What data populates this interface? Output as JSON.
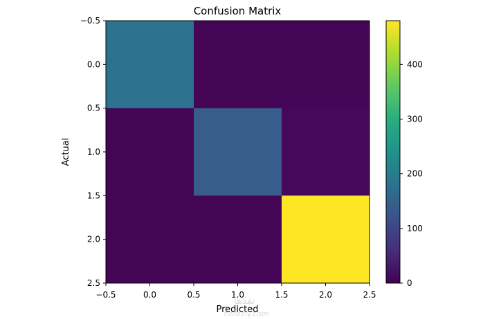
{
  "chart_data": {
    "type": "heatmap",
    "title": "Confusion Matrix",
    "xlabel": "Predicted",
    "ylabel": "Actual",
    "colormap": "viridis",
    "matrix": [
      [
        180,
        5,
        5
      ],
      [
        5,
        140,
        10
      ],
      [
        5,
        5,
        480
      ]
    ],
    "xlim": [
      -0.5,
      2.5
    ],
    "ylim": [
      2.5,
      -0.5
    ],
    "xticks": [
      "−0.5",
      "0.0",
      "0.5",
      "1.0",
      "1.5",
      "2.0",
      "2.5"
    ],
    "yticks": [
      "−0.5",
      "0.0",
      "0.5",
      "1.0",
      "1.5",
      "2.0",
      "2.5"
    ],
    "colorbar": {
      "range": [
        0,
        480
      ],
      "ticks": [
        "0",
        "100",
        "200",
        "300",
        "400"
      ]
    },
    "watermark": {
      "main": "نفذها",
      "sub": "nafezly.com"
    }
  }
}
